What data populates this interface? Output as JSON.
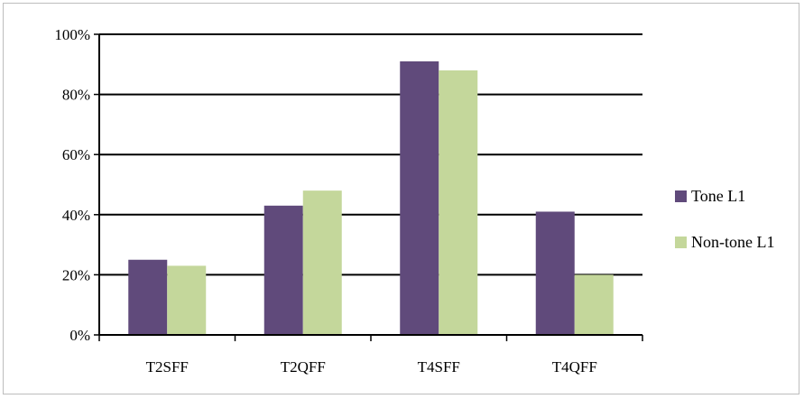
{
  "chart_data": {
    "type": "bar",
    "categories": [
      "T2SFF",
      "T2QFF",
      "T4SFF",
      "T4QFF"
    ],
    "series": [
      {
        "name": "Tone L1",
        "values": [
          25,
          43,
          91,
          41
        ],
        "color": "#604A7B"
      },
      {
        "name": "Non-tone L1",
        "values": [
          23,
          48,
          88,
          20
        ],
        "color": "#C4D79B"
      }
    ],
    "ylim": [
      0,
      100
    ],
    "yticks": [
      0,
      20,
      40,
      60,
      80,
      100
    ],
    "ytick_labels": [
      "0%",
      "20%",
      "40%",
      "60%",
      "80%",
      "100%"
    ],
    "title": "",
    "xlabel": "",
    "ylabel": "",
    "grid": true,
    "legend_position": "right"
  }
}
